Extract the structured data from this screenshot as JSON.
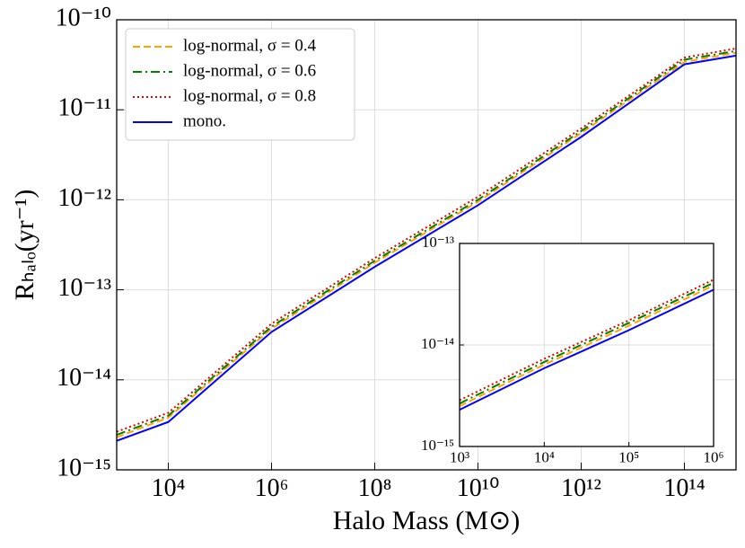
{
  "chart_data": [
    {
      "type": "line",
      "xlabel": "Halo Mass (M⊙)",
      "ylabel": "Rₕₐₗₒ(yr⁻¹)",
      "log_x": true,
      "log_y": true,
      "grid": true,
      "legend": "upper left",
      "xlim": [
        1000.0,
        1000000000000000.0
      ],
      "ylim": [
        1e-15,
        1e-10
      ],
      "xticks": [
        {
          "value": 10000.0,
          "label": "10⁴"
        },
        {
          "value": 1000000.0,
          "label": "10⁶"
        },
        {
          "value": 100000000.0,
          "label": "10⁸"
        },
        {
          "value": 10000000000.0,
          "label": "10¹⁰"
        },
        {
          "value": 1000000000000.0,
          "label": "10¹²"
        },
        {
          "value": 100000000000000.0,
          "label": "10¹⁴"
        }
      ],
      "yticks": [
        {
          "value": 1e-15,
          "label": "10⁻¹⁵"
        },
        {
          "value": 1e-14,
          "label": "10⁻¹⁴"
        },
        {
          "value": 1e-13,
          "label": "10⁻¹³"
        },
        {
          "value": 1e-12,
          "label": "10⁻¹²"
        },
        {
          "value": 1e-11,
          "label": "10⁻¹¹"
        },
        {
          "value": 1e-10,
          "label": "10⁻¹⁰"
        }
      ],
      "x": [
        1000.0,
        10000.0,
        1000000.0,
        100000000.0,
        10000000000.0,
        1000000000000.0,
        100000000000000.0,
        1000000000000000.0
      ],
      "series": [
        {
          "name": "log-normal, σ = 0.4",
          "color": "#ffa500",
          "dash": "dashed",
          "values": [
            2.3e-15,
            3.8e-15,
            3.7e-14,
            2e-13,
            9.5e-13,
            5.5e-12,
            3.4e-11,
            4.3e-11
          ]
        },
        {
          "name": "log-normal, σ = 0.6",
          "color": "#008000",
          "dash": "dashdot",
          "values": [
            2.45e-15,
            4e-15,
            3.9e-14,
            2.1e-13,
            1e-12,
            5.8e-12,
            3.6e-11,
            4.5e-11
          ]
        },
        {
          "name": "log-normal, σ = 0.8",
          "color": "#e00000",
          "dash": "dotted",
          "values": [
            2.65e-15,
            4.3e-15,
            4.2e-14,
            2.25e-13,
            1.08e-12,
            6.2e-12,
            3.8e-11,
            4.8e-11
          ]
        },
        {
          "name": "mono.",
          "color": "#0000ff",
          "dash": "solid",
          "values": [
            2.1e-15,
            3.4e-15,
            3.4e-14,
            1.8e-13,
            8.7e-13,
            5e-12,
            3.2e-11,
            4e-11
          ]
        }
      ]
    },
    {
      "type": "line",
      "log_x": true,
      "log_y": true,
      "grid": true,
      "xlim": [
        1000.0,
        1000000.0
      ],
      "ylim": [
        1e-15,
        1e-13
      ],
      "xticks": [
        {
          "value": 1000.0,
          "label": "10³"
        },
        {
          "value": 10000.0,
          "label": "10⁴"
        },
        {
          "value": 100000.0,
          "label": "10⁵"
        },
        {
          "value": 1000000.0,
          "label": "10⁶"
        }
      ],
      "yticks": [
        {
          "value": 1e-15,
          "label": "10⁻¹⁵"
        },
        {
          "value": 1e-14,
          "label": "10⁻¹⁴"
        },
        {
          "value": 1e-13,
          "label": "10⁻¹³"
        }
      ],
      "x": [
        1000.0,
        10000.0,
        100000.0,
        1000000.0
      ],
      "series": [
        {
          "color": "#ffa500",
          "dash": "dashed",
          "values": [
            2.5e-15,
            6.4e-15,
            1.55e-14,
            3.85e-14
          ]
        },
        {
          "color": "#008000",
          "dash": "dashdot",
          "values": [
            2.65e-15,
            6.8e-15,
            1.65e-14,
            4.1e-14
          ]
        },
        {
          "color": "#e00000",
          "dash": "dotted",
          "values": [
            2.85e-15,
            7.3e-15,
            1.75e-14,
            4.4e-14
          ]
        },
        {
          "color": "#0000ff",
          "dash": "solid",
          "values": [
            2.3e-15,
            5.9e-15,
            1.4e-14,
            3.5e-14
          ]
        }
      ]
    }
  ]
}
